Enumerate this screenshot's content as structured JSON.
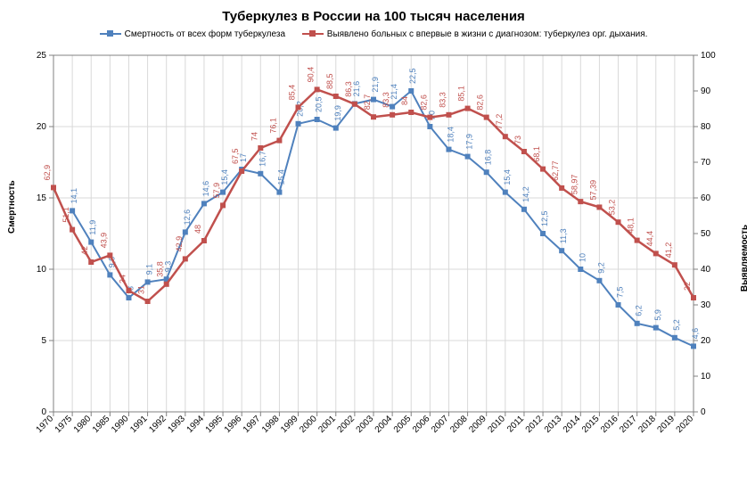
{
  "chart": {
    "type": "line-dual-axis",
    "title": "Туберкулез в России на 100 тысяч населения",
    "background_color": "#ffffff",
    "grid_color": "#d9d9d9",
    "border_color": "#808080",
    "title_fontsize": 15,
    "years": [
      "1970",
      "1975",
      "1980",
      "1985",
      "1990",
      "1991",
      "1992",
      "1993",
      "1994",
      "1995",
      "1996",
      "1997",
      "1998",
      "1999",
      "2000",
      "2001",
      "2002",
      "2003",
      "2004",
      "2005",
      "2006",
      "2007",
      "2008",
      "2009",
      "2010",
      "2011",
      "2012",
      "2013",
      "2014",
      "2015",
      "2016",
      "2017",
      "2018",
      "2019",
      "2020"
    ],
    "left_axis": {
      "label": "Смертность",
      "min": 0,
      "max": 25,
      "step": 5
    },
    "right_axis": {
      "label": "Выявляемость",
      "min": 0,
      "max": 100,
      "step": 10
    },
    "series": [
      {
        "name": "Смертность от всех форм туберкулеза",
        "color": "#4f81bd",
        "marker": "square",
        "axis": "left",
        "line_width": 2,
        "values": [
          null,
          14.1,
          11.9,
          9.6,
          8,
          9.1,
          9.3,
          12.6,
          14.6,
          15.4,
          17,
          16.7,
          15.4,
          20.2,
          20.5,
          19.9,
          21.6,
          21.9,
          21.4,
          22.5,
          20,
          18.4,
          17.9,
          16.8,
          15.4,
          14.2,
          12.5,
          11.3,
          10,
          9.2,
          7.5,
          6.2,
          5.9,
          5.2,
          4.6
        ]
      },
      {
        "name": "Выявлено больных с впервые в жизни с диагнозом: туберкулез орг. дыхания.",
        "color": "#c0504d",
        "marker": "square",
        "axis": "right",
        "line_width": 2.5,
        "values": [
          62.9,
          51.1,
          42,
          43.9,
          34,
          31,
          35.8,
          42.9,
          48,
          57.9,
          67.5,
          74,
          76.1,
          85.4,
          90.4,
          88.5,
          86.3,
          82.7,
          83.3,
          84,
          82.6,
          83.3,
          85.1,
          82.6,
          77.2,
          73,
          68.1,
          62.77,
          58.97,
          57.39,
          53.2,
          48.1,
          44.4,
          41.2,
          32
        ]
      }
    ]
  }
}
